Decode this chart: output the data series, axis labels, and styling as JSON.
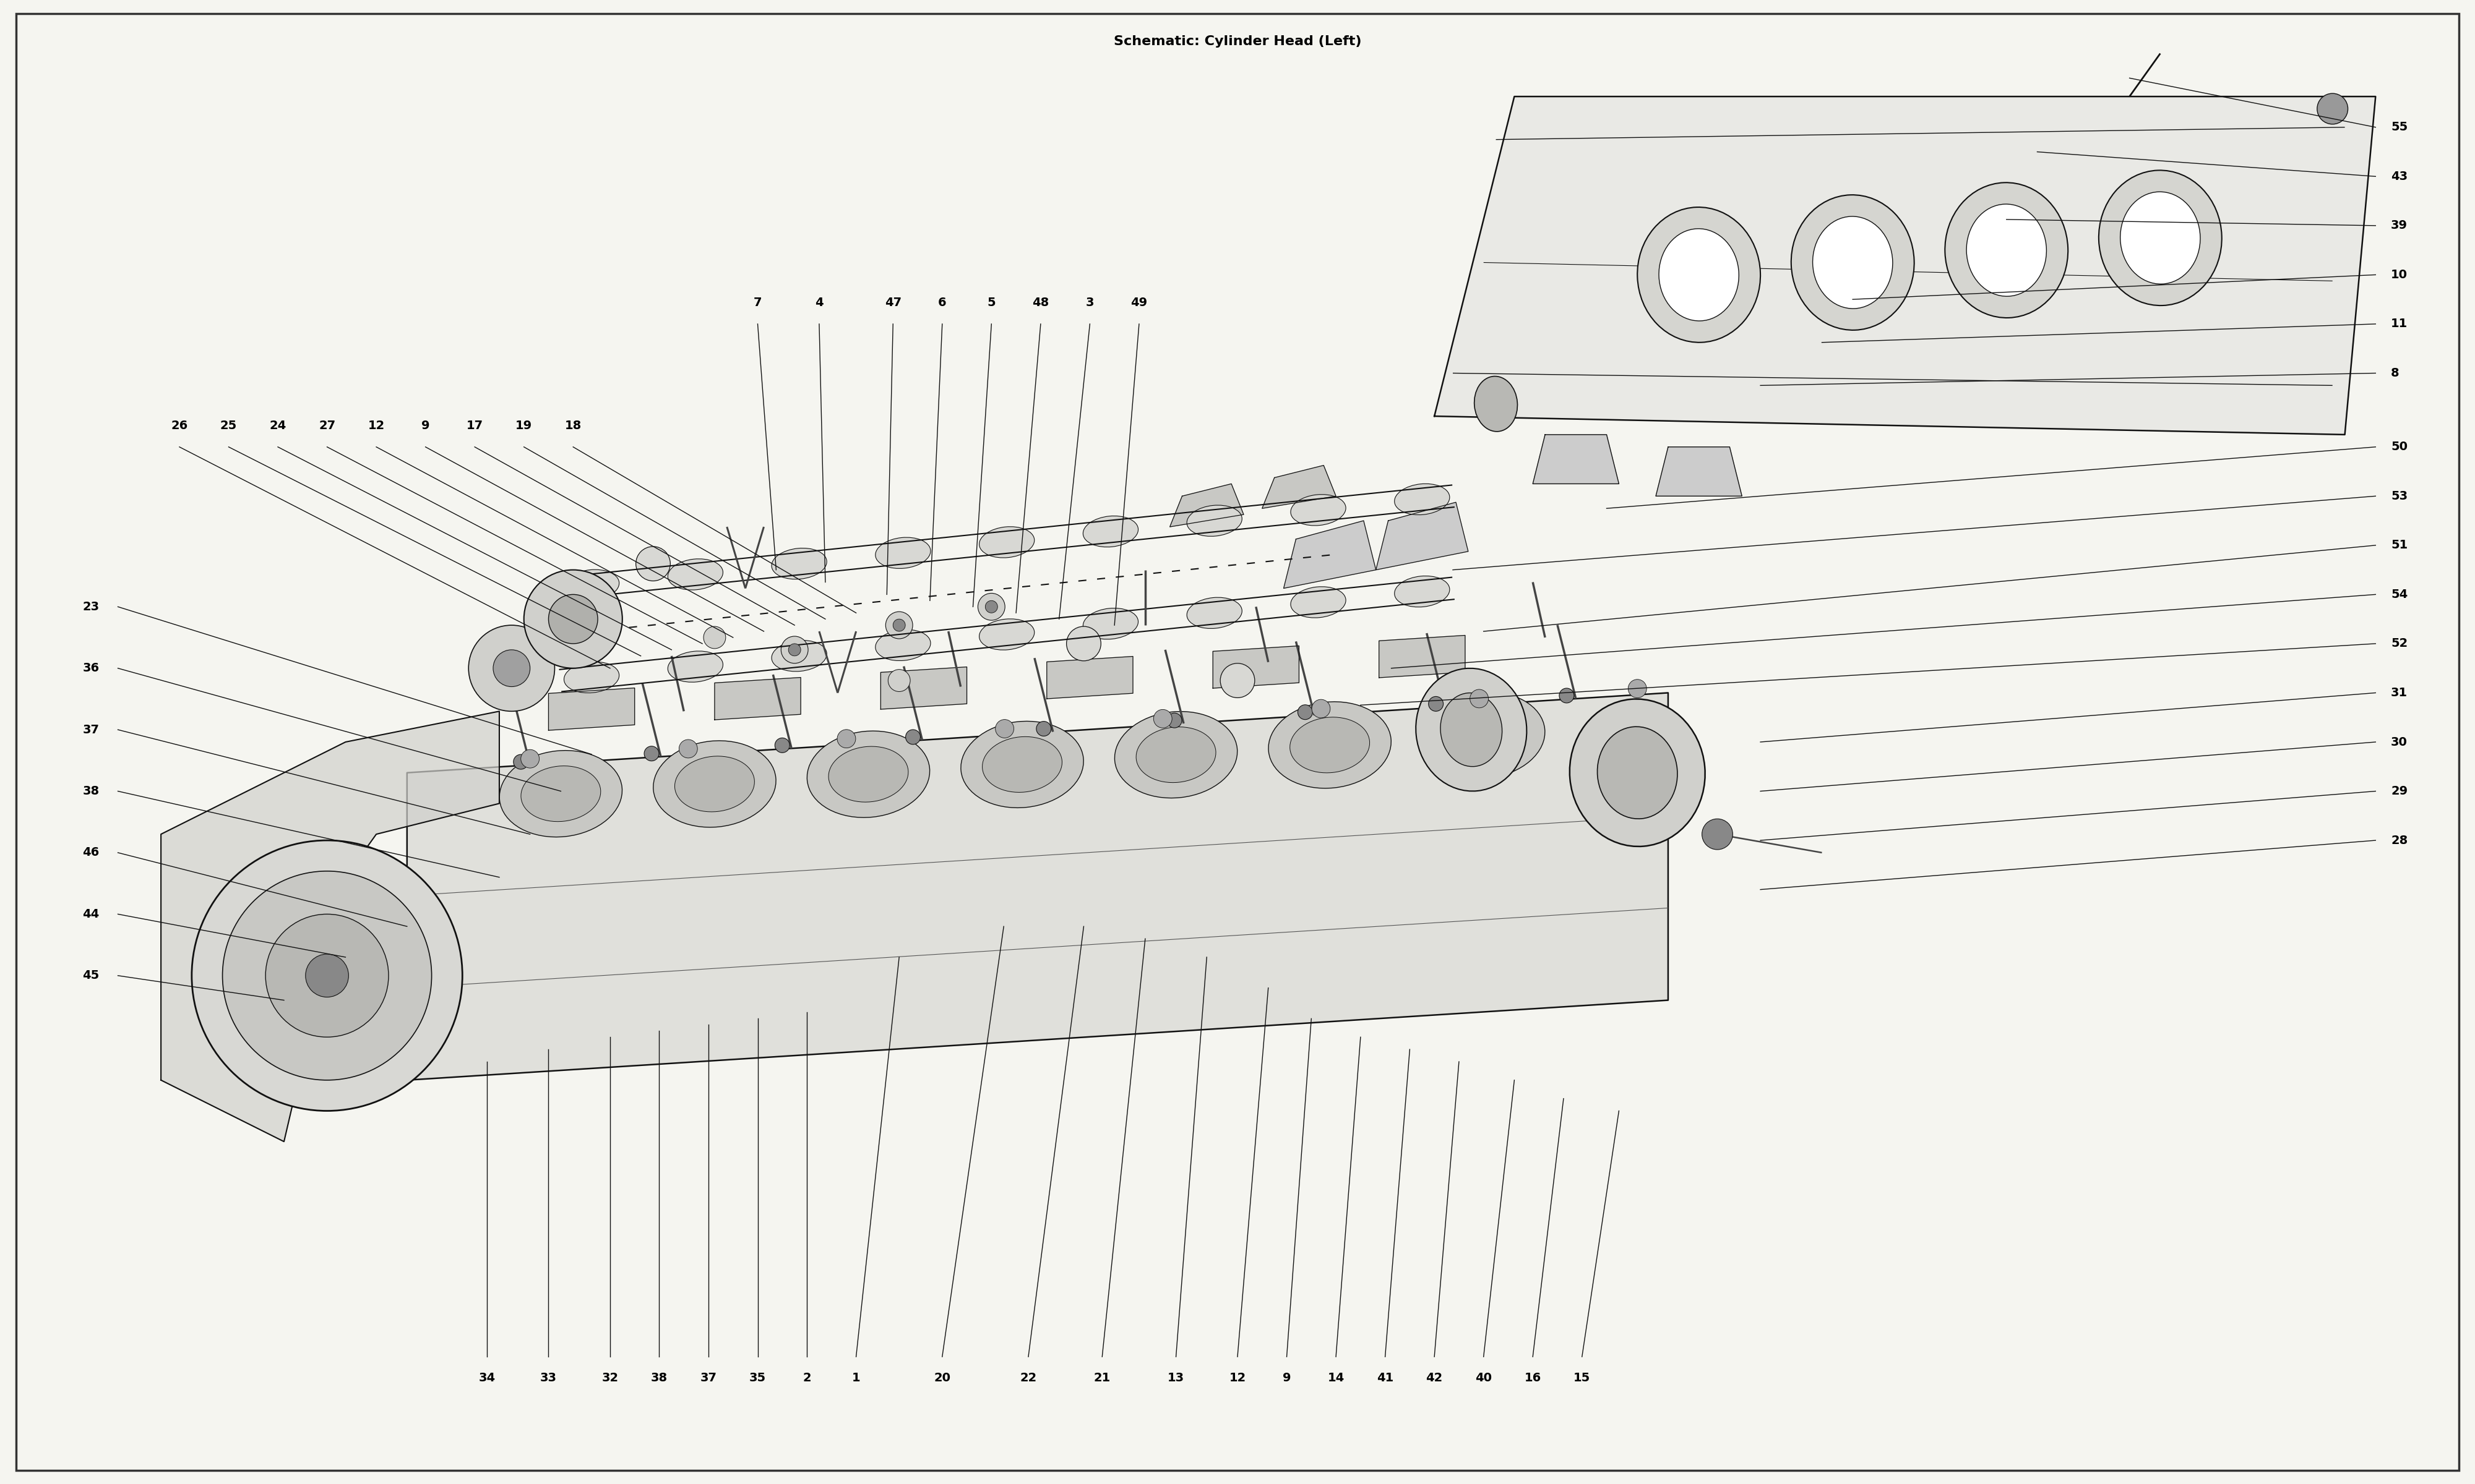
{
  "title": "Schematic: Cylinder Head (Left)",
  "bg_color": "#f5f5f0",
  "line_color": "#111111",
  "text_color": "#000000",
  "fig_width": 40,
  "fig_height": 24,
  "label_fontsize": 14,
  "title_fontsize": 16,
  "left_top_labels": [
    [
      "26",
      2.8,
      16.8,
      9.8,
      13.2
    ],
    [
      "25",
      3.6,
      16.8,
      10.3,
      13.4
    ],
    [
      "24",
      4.4,
      16.8,
      10.8,
      13.5
    ],
    [
      "27",
      5.2,
      16.8,
      11.3,
      13.6
    ],
    [
      "12",
      6.0,
      16.8,
      11.8,
      13.7
    ],
    [
      "9",
      6.8,
      16.8,
      12.3,
      13.8
    ],
    [
      "17",
      7.6,
      16.8,
      12.8,
      13.9
    ],
    [
      "19",
      8.4,
      16.8,
      13.3,
      14.0
    ],
    [
      "18",
      9.2,
      16.8,
      13.8,
      14.1
    ]
  ],
  "top_labels": [
    [
      "7",
      12.2,
      18.8,
      12.5,
      14.8
    ],
    [
      "4",
      13.2,
      18.8,
      13.3,
      14.6
    ],
    [
      "47",
      14.4,
      18.8,
      14.3,
      14.4
    ],
    [
      "6",
      15.2,
      18.8,
      15.0,
      14.3
    ],
    [
      "5",
      16.0,
      18.8,
      15.7,
      14.2
    ],
    [
      "48",
      16.8,
      18.8,
      16.4,
      14.1
    ],
    [
      "3",
      17.6,
      18.8,
      17.1,
      14.0
    ],
    [
      "49",
      18.4,
      18.8,
      18.0,
      13.9
    ]
  ],
  "left_lower_labels": [
    [
      "23",
      1.8,
      14.2,
      9.5,
      11.8
    ],
    [
      "36",
      1.8,
      13.2,
      9.0,
      11.2
    ],
    [
      "37",
      1.8,
      12.2,
      8.5,
      10.5
    ],
    [
      "38",
      1.8,
      11.2,
      8.0,
      9.8
    ],
    [
      "46",
      1.8,
      10.2,
      6.5,
      9.0
    ],
    [
      "44",
      1.8,
      9.2,
      5.5,
      8.5
    ],
    [
      "45",
      1.8,
      8.2,
      4.5,
      7.8
    ]
  ],
  "bottom_labels": [
    [
      "34",
      7.8,
      2.0,
      7.8,
      6.8
    ],
    [
      "33",
      8.8,
      2.0,
      8.8,
      7.0
    ],
    [
      "32",
      9.8,
      2.0,
      9.8,
      7.2
    ],
    [
      "38",
      10.6,
      2.0,
      10.6,
      7.3
    ],
    [
      "37",
      11.4,
      2.0,
      11.4,
      7.4
    ],
    [
      "35",
      12.2,
      2.0,
      12.2,
      7.5
    ],
    [
      "2",
      13.0,
      2.0,
      13.0,
      7.6
    ],
    [
      "1",
      13.8,
      2.0,
      14.5,
      8.5
    ],
    [
      "20",
      15.2,
      2.0,
      16.2,
      9.0
    ],
    [
      "22",
      16.6,
      2.0,
      17.5,
      9.0
    ],
    [
      "21",
      17.8,
      2.0,
      18.5,
      8.8
    ],
    [
      "13",
      19.0,
      2.0,
      19.5,
      8.5
    ],
    [
      "12",
      20.0,
      2.0,
      20.5,
      8.0
    ],
    [
      "9",
      20.8,
      2.0,
      21.2,
      7.5
    ],
    [
      "14",
      21.6,
      2.0,
      22.0,
      7.2
    ],
    [
      "41",
      22.4,
      2.0,
      22.8,
      7.0
    ],
    [
      "42",
      23.2,
      2.0,
      23.6,
      6.8
    ],
    [
      "40",
      24.0,
      2.0,
      24.5,
      6.5
    ],
    [
      "16",
      24.8,
      2.0,
      25.3,
      6.2
    ],
    [
      "15",
      25.6,
      2.0,
      26.2,
      6.0
    ]
  ],
  "right_labels": [
    [
      "55",
      38.5,
      22.0,
      34.5,
      22.8
    ],
    [
      "43",
      38.5,
      21.2,
      33.0,
      21.6
    ],
    [
      "39",
      38.5,
      20.4,
      32.5,
      20.5
    ],
    [
      "10",
      38.5,
      19.6,
      30.0,
      19.2
    ],
    [
      "11",
      38.5,
      18.8,
      29.5,
      18.5
    ],
    [
      "8",
      38.5,
      18.0,
      28.5,
      17.8
    ],
    [
      "50",
      38.5,
      16.8,
      26.0,
      15.8
    ],
    [
      "53",
      38.5,
      16.0,
      23.5,
      14.8
    ],
    [
      "51",
      38.5,
      15.2,
      24.0,
      13.8
    ],
    [
      "54",
      38.5,
      14.4,
      22.5,
      13.2
    ],
    [
      "52",
      38.5,
      13.6,
      22.0,
      12.6
    ],
    [
      "31",
      38.5,
      12.8,
      28.5,
      12.0
    ],
    [
      "30",
      38.5,
      12.0,
      28.5,
      11.2
    ],
    [
      "29",
      38.5,
      11.2,
      28.5,
      10.4
    ],
    [
      "28",
      38.5,
      10.4,
      28.5,
      9.6
    ]
  ]
}
